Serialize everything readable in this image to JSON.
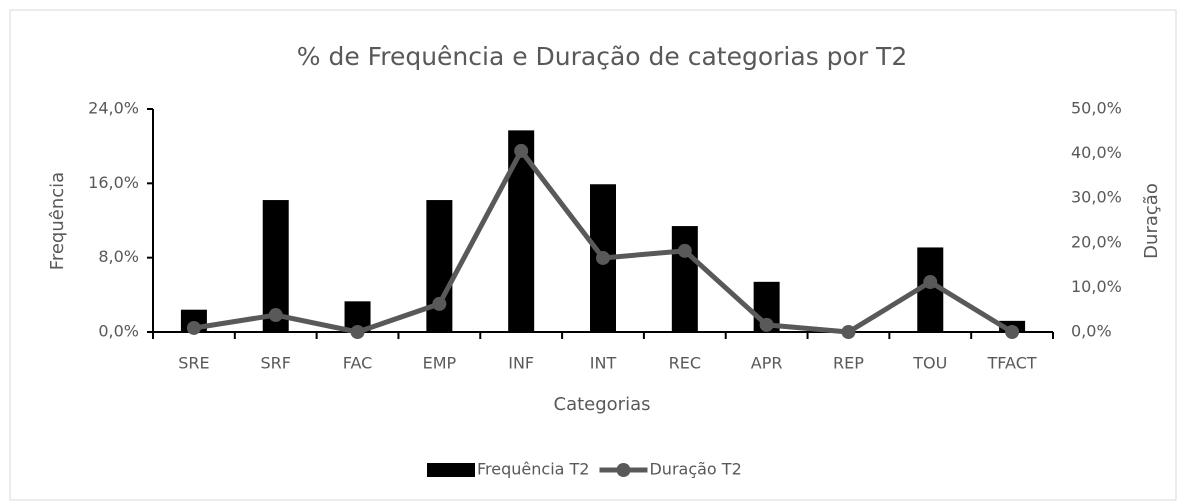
{
  "chart_data": {
    "type": "bar_line",
    "title": "% de Frequência e Duração de categorias por T2",
    "xlabel": "Categorias",
    "ylabel": "Frequência",
    "y2label": "Duração",
    "categories": [
      "SRE",
      "SRF",
      "FAC",
      "EMP",
      "INF",
      "INT",
      "REC",
      "APR",
      "REP",
      "TOU",
      "TFACT"
    ],
    "series": [
      {
        "name": "Frequência T2",
        "type": "bar",
        "color": "#000000",
        "values": [
          2.4,
          14.2,
          3.3,
          14.2,
          21.7,
          15.9,
          11.4,
          5.4,
          0,
          9.1,
          1.2
        ]
      },
      {
        "name": "Duração T2",
        "type": "line",
        "axis": "y2",
        "color": "#595959",
        "values": [
          0.9,
          3.8,
          0,
          6.3,
          40.6,
          16.6,
          18.2,
          1.6,
          0,
          11.2,
          0
        ]
      }
    ],
    "ylim": [
      0,
      24
    ],
    "yticks": [
      {
        "value": 0,
        "label": "0,0%"
      },
      {
        "value": 8,
        "label": "8,0%"
      },
      {
        "value": 16,
        "label": "16,0%"
      },
      {
        "value": 24,
        "label": "24,0%"
      }
    ],
    "y2lim": [
      0,
      50
    ],
    "y2ticks": [
      {
        "value": 0,
        "label": "0,0%"
      },
      {
        "value": 10,
        "label": "10,0%"
      },
      {
        "value": 20,
        "label": "20,0%"
      },
      {
        "value": 30,
        "label": "30,0%"
      },
      {
        "value": 40,
        "label": "40,0%"
      },
      {
        "value": 50,
        "label": "50,0%"
      }
    ],
    "grid": false,
    "legend": "bottom"
  }
}
